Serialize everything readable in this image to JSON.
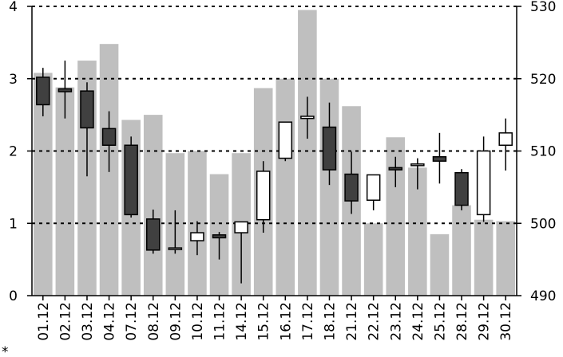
{
  "chart_data": {
    "type": "candlestick+bar",
    "categories": [
      "01.12",
      "02.12",
      "03.12",
      "04.12",
      "07.12",
      "08.12",
      "09.12",
      "10.12",
      "11.12",
      "14.12",
      "15.12",
      "16.12",
      "17.12",
      "18.12",
      "21.12",
      "22.12",
      "23.12",
      "24.12",
      "25.12",
      "28.12",
      "29.12",
      "30.12"
    ],
    "left_axis": {
      "min": 0,
      "max": 4,
      "ticks": [
        0,
        1,
        2,
        3,
        4
      ]
    },
    "right_axis": {
      "min": 490,
      "max": 530,
      "ticks": [
        490,
        500,
        510,
        520,
        530
      ]
    },
    "grid": "dotted-horizontal",
    "bar_series": {
      "axis": "left",
      "color": "#bfbfbf",
      "values": [
        3.08,
        2.88,
        3.25,
        3.48,
        2.43,
        2.5,
        1.97,
        2.0,
        1.68,
        1.97,
        2.87,
        3.0,
        3.95,
        3.0,
        2.62,
        1.0,
        2.19,
        1.77,
        0.85,
        1.25,
        1.05,
        1.03
      ]
    },
    "candle_series": {
      "axis": "right",
      "up_color": "#ffffff",
      "down_color": "#404040",
      "candles": [
        {
          "open": 520.2,
          "close": 516.4,
          "high": 521.5,
          "low": 514.8
        },
        {
          "open": 518.6,
          "close": 518.2,
          "high": 522.5,
          "low": 514.5
        },
        {
          "open": 518.3,
          "close": 513.2,
          "high": 519.5,
          "low": 506.5
        },
        {
          "open": 513.1,
          "close": 510.8,
          "high": 515.5,
          "low": 507.1
        },
        {
          "open": 510.8,
          "close": 501.2,
          "high": 512.0,
          "low": 500.8
        },
        {
          "open": 500.6,
          "close": 496.3,
          "high": 501.9,
          "low": 495.8
        },
        {
          "open": 496.6,
          "close": 496.6,
          "high": 501.8,
          "low": 495.8
        },
        {
          "open": 497.6,
          "close": 498.7,
          "high": 500.3,
          "low": 495.6
        },
        {
          "open": 498.4,
          "close": 498.0,
          "high": 498.8,
          "low": 495.0
        },
        {
          "open": 498.7,
          "close": 500.2,
          "high": 500.2,
          "low": 491.7
        },
        {
          "open": 500.5,
          "close": 507.2,
          "high": 508.6,
          "low": 498.7
        },
        {
          "open": 509.0,
          "close": 514.0,
          "high": 514.0,
          "low": 508.6
        },
        {
          "open": 514.5,
          "close": 514.8,
          "high": 517.5,
          "low": 511.7
        },
        {
          "open": 513.3,
          "close": 507.4,
          "high": 516.7,
          "low": 505.3
        },
        {
          "open": 506.8,
          "close": 503.1,
          "high": 509.9,
          "low": 501.3
        },
        {
          "open": 503.2,
          "close": 506.7,
          "high": 506.7,
          "low": 501.8
        },
        {
          "open": 507.7,
          "close": 507.4,
          "high": 509.2,
          "low": 505.0
        },
        {
          "open": 508.2,
          "close": 508.2,
          "high": 509.0,
          "low": 504.7
        },
        {
          "open": 509.2,
          "close": 508.6,
          "high": 512.5,
          "low": 505.5
        },
        {
          "open": 507.0,
          "close": 502.5,
          "high": 507.5,
          "low": 501.8
        },
        {
          "open": 501.2,
          "close": 510.0,
          "high": 512.0,
          "low": 500.2
        },
        {
          "open": 510.8,
          "close": 512.5,
          "high": 514.5,
          "low": 507.3
        }
      ]
    }
  },
  "footnote": "* "
}
